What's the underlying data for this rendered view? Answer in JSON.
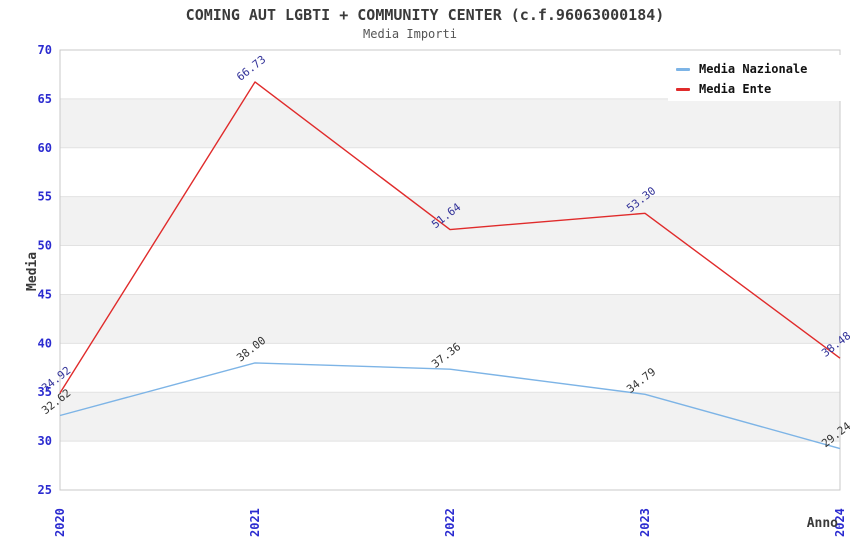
{
  "page": {
    "title": "COMING AUT LGBTI + COMMUNITY CENTER (c.f.96063000184)",
    "subtitle": "Media Importi"
  },
  "colors": {
    "background": "#ffffff",
    "band_alt": "#f2f2f2",
    "grid": "#e2e2e2",
    "plot_border": "#c9c9c9",
    "axis_tick_label": "#2b2bd0",
    "axis_title": "#3a3a3a",
    "series_nazionale": "#7db4e6",
    "series_ente": "#e02b2b",
    "label_nazionale": "#333333",
    "label_ente": "#333399"
  },
  "chart_data": {
    "type": "line",
    "title": "COMING AUT LGBTI + COMMUNITY CENTER (c.f.96063000184)",
    "subtitle": "Media Importi",
    "xlabel": "Anno",
    "ylabel": "Media",
    "categories": [
      "2020",
      "2021",
      "2022",
      "2023",
      "2024"
    ],
    "series": [
      {
        "name": "Media Nazionale",
        "color": "#7db4e6",
        "label_color": "#333333",
        "values": [
          32.62,
          38.0,
          37.36,
          34.79,
          29.24
        ]
      },
      {
        "name": "Media Ente",
        "color": "#e02b2b",
        "label_color": "#333399",
        "values": [
          34.92,
          66.73,
          51.64,
          53.3,
          38.48
        ]
      }
    ],
    "ylim": [
      25,
      70
    ],
    "ytick_step": 5,
    "value_label_decimals": 2,
    "grid": true,
    "alternating_bands": true,
    "legend_position": "top-right"
  }
}
